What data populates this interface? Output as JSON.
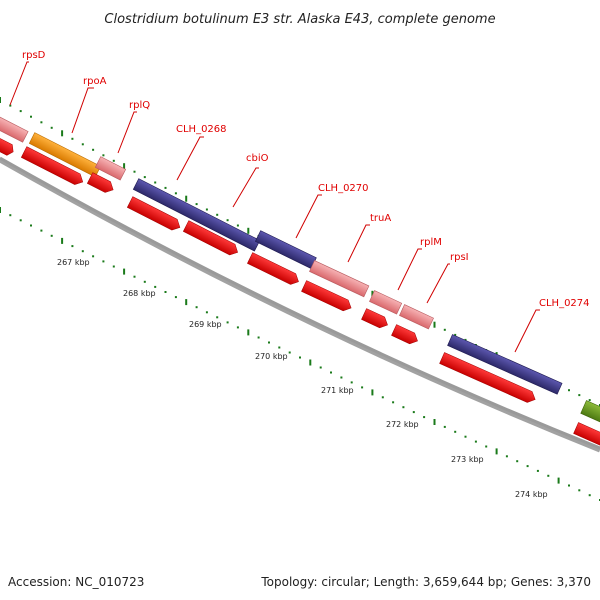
{
  "title": "Clostridium botulinum E3 str. Alaska E43, complete genome",
  "footer": {
    "accession": "Accession: NC_010723",
    "summary": "Topology: circular; Length: 3,659,644 bp; Genes: 3,370"
  },
  "colors": {
    "rps_ribosomal": "#ef8f92",
    "rpoA": "#f4960c",
    "hypothetical": "#433d8f",
    "cds_strand": "#ff0000",
    "partial": "#6a9a1e",
    "label": "#e00000",
    "tick": "#1a7a1a",
    "backbone": "#777777"
  },
  "genes": [
    {
      "label": "rpsD",
      "color": "#ef8f92"
    },
    {
      "label": "rpoA",
      "color": "#f4960c"
    },
    {
      "label": "rplQ",
      "color": "#ef8f92"
    },
    {
      "label": "CLH_0268",
      "color": "#433d8f"
    },
    {
      "label": "cbiO",
      "color": "#433d8f"
    },
    {
      "label": "CLH_0270",
      "color": "#433d8f"
    },
    {
      "label": "truA",
      "color": "#ef8f92"
    },
    {
      "label": "rplM",
      "color": "#ef8f92"
    },
    {
      "label": "rpsI",
      "color": "#ef8f92"
    },
    {
      "label": "CLH_0274",
      "color": "#433d8f"
    }
  ],
  "kbp_labels": [
    "267 kbp",
    "268 kbp",
    "269 kbp",
    "270 kbp",
    "271 kbp",
    "272 kbp",
    "273 kbp",
    "274 kbp"
  ]
}
